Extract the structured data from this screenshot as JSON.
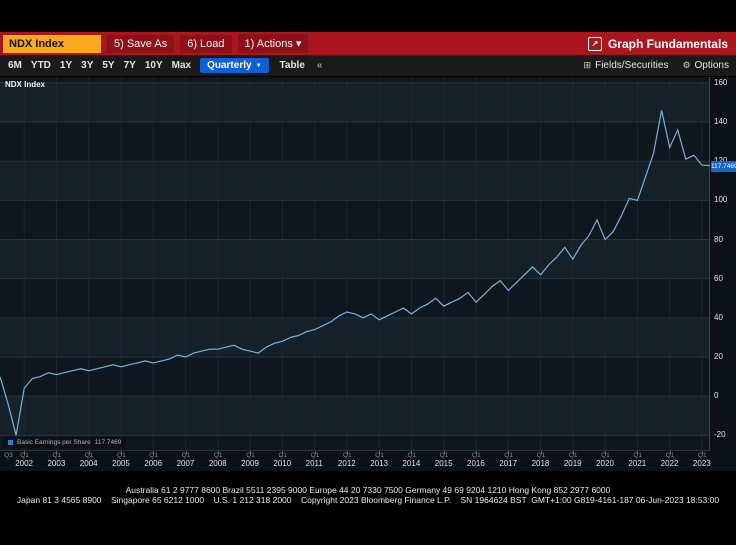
{
  "command_bar": {
    "ticker": "NDX Index",
    "save_as": "5) Save As",
    "load": "6) Load",
    "actions": "1) Actions ▾",
    "title_icon": "↗",
    "title": "Graph Fundamentals"
  },
  "toolbar": {
    "ranges": [
      "6M",
      "YTD",
      "1Y",
      "3Y",
      "5Y",
      "7Y",
      "10Y",
      "Max"
    ],
    "frequency": "Quarterly",
    "frequency_caret": "▼",
    "table_label": "Table",
    "collapse": "«",
    "fields_icon": "⊞",
    "fields_securities": "Fields/Securities",
    "options_icon": "⚙",
    "options": "Options"
  },
  "chart": {
    "security_label": "NDX Index",
    "legend_label": "Basic Earnings per Share",
    "legend_value": "117.7469",
    "badge_value": "117.7469"
  },
  "chart_data": {
    "type": "line",
    "title": "NDX Index - Basic Earnings per Share (Quarterly)",
    "x_start": "2001 Q2",
    "x_freq": "quarterly",
    "series": [
      {
        "name": "Basic Earnings per Share",
        "values": [
          10,
          -4,
          -20,
          4,
          9,
          10,
          12,
          11,
          12,
          13,
          14,
          13,
          14,
          15,
          16,
          15,
          16,
          17,
          18,
          17,
          18,
          19,
          21,
          20,
          22,
          23,
          24,
          24,
          25,
          26,
          24,
          23,
          22,
          25,
          27,
          28,
          30,
          31,
          33,
          34,
          36,
          38,
          41,
          43,
          42,
          40,
          42,
          39,
          41,
          43,
          45,
          42,
          45,
          47,
          50,
          46,
          48,
          50,
          53,
          48,
          52,
          56,
          59,
          54,
          58,
          62,
          66,
          62,
          67,
          71,
          76,
          70,
          77,
          82,
          90,
          80,
          84,
          92,
          101,
          100,
          112,
          124,
          146,
          127,
          136,
          121,
          123,
          118,
          117.7469
        ]
      }
    ],
    "last_value": 117.7469,
    "years": [
      "2002",
      "2003",
      "2004",
      "2005",
      "2006",
      "2007",
      "2008",
      "2009",
      "2010",
      "2011",
      "2012",
      "2013",
      "2014",
      "2015",
      "2016",
      "2017",
      "2018",
      "2019",
      "2020",
      "2021",
      "2022",
      "2023"
    ],
    "lead_quarter_label": "Q3",
    "quarter_tick_label": "Q1",
    "ylim": [
      -28,
      163
    ],
    "yticks": [
      160,
      140,
      120,
      100,
      80,
      60,
      40,
      20,
      0,
      -20
    ],
    "grid": true,
    "legend_position": "bottom-left",
    "colors": {
      "line": "#7db0d6",
      "badge_bg": "#1465cc",
      "legend_swatch": "#2f7ed8",
      "band_a": "#0e171d",
      "band_b": "#152128",
      "grid_h": "#27343b",
      "grid_v": "#1c262d",
      "axis_line": "#3a4850",
      "chart_bg": "#0b1116"
    }
  },
  "footer": {
    "line1": "Australia 61 2 9777 8600 Brazil 5511 2395 9000 Europe 44 20 7330 7500 Germany 49 69 9204 1210 Hong Kong 852 2977 6000",
    "line2": "Japan 81 3 4565 8900    Singapore 65 6212 1000    U.S. 1 212 318 2000    Copyright 2023 Bloomberg Finance L.P.    SN 1964624 BST  GMT+1:00 G819-4161-187 06-Jun-2023 18:53:00"
  }
}
